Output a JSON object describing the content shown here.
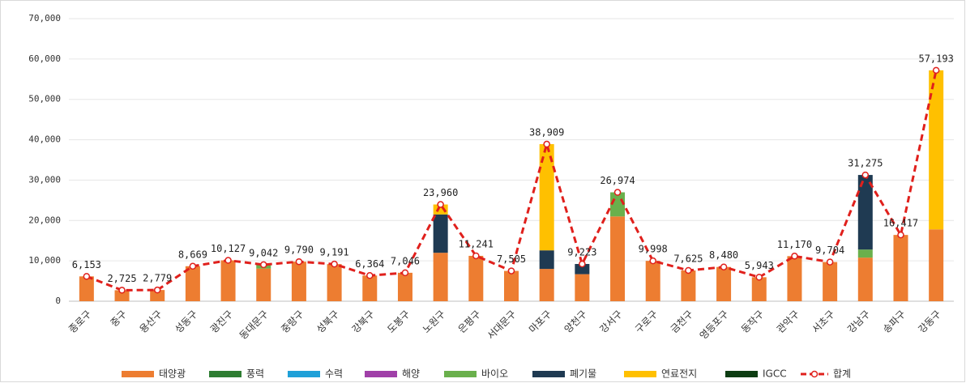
{
  "chart_data": {
    "type": "bar",
    "stacked": true,
    "categories": [
      "종로구",
      "중구",
      "용산구",
      "성동구",
      "광진구",
      "동대문구",
      "중랑구",
      "성북구",
      "강북구",
      "도봉구",
      "노원구",
      "은평구",
      "서대문구",
      "마포구",
      "양천구",
      "강서구",
      "구로구",
      "금천구",
      "영등포구",
      "동작구",
      "관악구",
      "서초구",
      "강남구",
      "송파구",
      "강동구"
    ],
    "series": [
      {
        "name": "태양광",
        "color": "#ed7d31",
        "values": [
          6153,
          2725,
          2779,
          8669,
          10127,
          8100,
          9790,
          9191,
          6364,
          7046,
          12000,
          11241,
          7505,
          8000,
          6700,
          21000,
          9998,
          7625,
          8480,
          5943,
          11170,
          9704,
          10800,
          16417,
          17800
        ]
      },
      {
        "name": "풍력",
        "color": "#2e7d32",
        "values": [
          0,
          0,
          0,
          0,
          0,
          0,
          0,
          0,
          0,
          0,
          0,
          0,
          0,
          0,
          0,
          0,
          0,
          0,
          0,
          0,
          0,
          0,
          0,
          0,
          0
        ]
      },
      {
        "name": "수력",
        "color": "#1fa0d8",
        "values": [
          0,
          0,
          0,
          0,
          0,
          0,
          0,
          0,
          0,
          0,
          0,
          0,
          0,
          0,
          0,
          0,
          0,
          0,
          0,
          0,
          0,
          0,
          0,
          0,
          0
        ]
      },
      {
        "name": "해양",
        "color": "#a040a8",
        "values": [
          0,
          0,
          0,
          0,
          0,
          0,
          0,
          0,
          0,
          0,
          0,
          0,
          0,
          0,
          0,
          0,
          0,
          0,
          0,
          0,
          0,
          0,
          0,
          0,
          0
        ]
      },
      {
        "name": "바이오",
        "color": "#6ab04c",
        "values": [
          0,
          0,
          0,
          0,
          0,
          942,
          0,
          0,
          0,
          0,
          0,
          0,
          0,
          0,
          0,
          5974,
          0,
          0,
          0,
          0,
          0,
          0,
          2000,
          0,
          0
        ]
      },
      {
        "name": "폐기물",
        "color": "#1f3a52",
        "values": [
          0,
          0,
          0,
          0,
          0,
          0,
          0,
          0,
          0,
          0,
          9500,
          0,
          0,
          4600,
          2523,
          0,
          0,
          0,
          0,
          0,
          0,
          0,
          18475,
          0,
          0
        ]
      },
      {
        "name": "연료전지",
        "color": "#ffc000",
        "values": [
          0,
          0,
          0,
          0,
          0,
          0,
          0,
          0,
          0,
          0,
          2460,
          0,
          0,
          26309,
          0,
          0,
          0,
          0,
          0,
          0,
          0,
          0,
          0,
          0,
          39393
        ]
      },
      {
        "name": "IGCC",
        "color": "#0d3d12",
        "values": [
          0,
          0,
          0,
          0,
          0,
          0,
          0,
          0,
          0,
          0,
          0,
          0,
          0,
          0,
          0,
          0,
          0,
          0,
          0,
          0,
          0,
          0,
          0,
          0,
          0
        ]
      },
      {
        "name": "합계",
        "type": "line",
        "color": "#e0201c",
        "values": [
          6153,
          2725,
          2779,
          8669,
          10127,
          9042,
          9790,
          9191,
          6364,
          7046,
          23960,
          11241,
          7505,
          38909,
          9223,
          26974,
          9998,
          7625,
          8480,
          5943,
          11170,
          9704,
          31275,
          16417,
          57193
        ],
        "value_labels": [
          "6,153",
          "2,725",
          "2,779",
          "8,669",
          "10,127",
          "9,042",
          "9,790",
          "9,191",
          "6,364",
          "7,046",
          "23,960",
          "11,241",
          "7,505",
          "38,909",
          "9,223",
          "26,974",
          "9,998",
          "7,625",
          "8,480",
          "5,943",
          "11,170",
          "9,704",
          "31,275",
          "16,417",
          "57,193"
        ]
      }
    ],
    "ylim": [
      0,
      70000
    ],
    "yticks": [
      0,
      {
        "value": 10000,
        "label": "10,000"
      },
      {
        "value": 20000,
        "label": "20,000"
      },
      {
        "value": 30000,
        "label": "30,000"
      },
      {
        "value": 40000,
        "label": "40,000"
      },
      {
        "value": 50000,
        "label": "50,000"
      },
      {
        "value": 60000,
        "label": "60,000"
      },
      {
        "value": 70000,
        "label": "70,000"
      }
    ],
    "grid": true,
    "legend": "bottom"
  }
}
